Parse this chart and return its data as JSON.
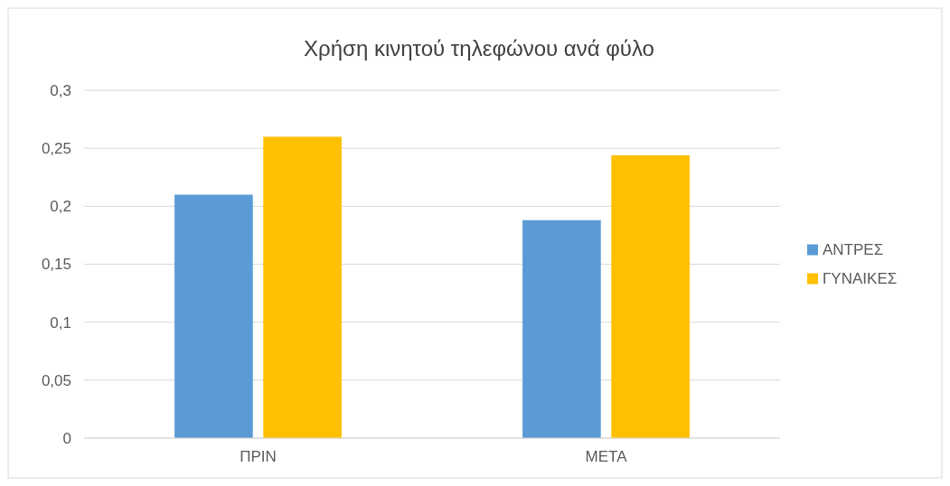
{
  "chart_data": {
    "type": "bar",
    "title": "Χρήση κινητού τηλεφώνου ανά φύλο",
    "categories": [
      "ΠΡΙΝ",
      "ΜΕΤΑ"
    ],
    "series": [
      {
        "name": "ΑΝΤΡΕΣ",
        "color": "#5b9bd5",
        "values": [
          0.21,
          0.188
        ]
      },
      {
        "name": "ΓΥΝΑΙΚΕΣ",
        "color": "#ffc000",
        "values": [
          0.26,
          0.244
        ]
      }
    ],
    "ylim": [
      0,
      0.3
    ],
    "yticks": [
      {
        "value": 0,
        "label": "0"
      },
      {
        "value": 0.05,
        "label": "0,05"
      },
      {
        "value": 0.1,
        "label": "0,1"
      },
      {
        "value": 0.15,
        "label": "0,15"
      },
      {
        "value": 0.2,
        "label": "0,2"
      },
      {
        "value": 0.25,
        "label": "0,25"
      },
      {
        "value": 0.3,
        "label": "0,3"
      }
    ],
    "grid": "y",
    "legend": "right"
  }
}
